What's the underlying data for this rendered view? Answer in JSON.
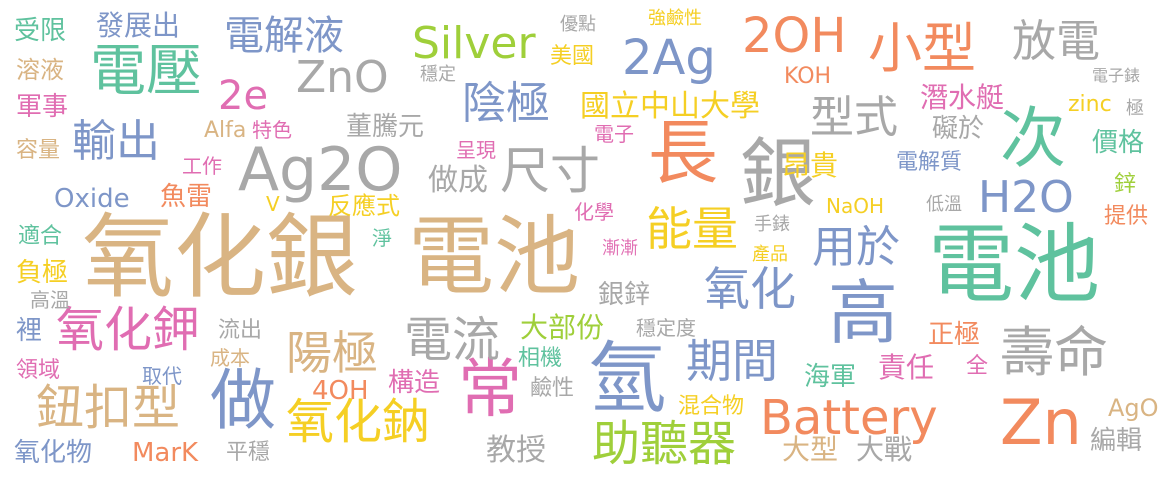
{
  "palette": {
    "tan": "#d9b483",
    "teal": "#5fc29e",
    "orange": "#f28a5e",
    "blue": "#7e96c8",
    "pink": "#e06db2",
    "lime": "#9fcf3a",
    "yellow": "#f5cf24",
    "gray": "#a8a8a8"
  },
  "words": [
    {
      "text": "氧化銀",
      "color": "tan"
    },
    {
      "text": "電池",
      "color": "tan"
    },
    {
      "text": "電池",
      "color": "teal"
    },
    {
      "text": "銀",
      "color": "gray"
    },
    {
      "text": "Zn",
      "color": "orange"
    },
    {
      "text": "氫",
      "color": "blue"
    },
    {
      "text": "高",
      "color": "blue"
    },
    {
      "text": "長",
      "color": "orange"
    },
    {
      "text": "次",
      "color": "teal"
    },
    {
      "text": "做",
      "color": "blue"
    },
    {
      "text": "常",
      "color": "pink"
    },
    {
      "text": "Ag2O",
      "color": "gray"
    },
    {
      "text": "電壓",
      "color": "teal"
    },
    {
      "text": "小型",
      "color": "orange"
    },
    {
      "text": "壽命",
      "color": "gray"
    },
    {
      "text": "Battery",
      "color": "orange"
    },
    {
      "text": "尺寸",
      "color": "gray"
    },
    {
      "text": "氧化鉀",
      "color": "pink"
    },
    {
      "text": "鈕扣型",
      "color": "tan"
    },
    {
      "text": "氧化鈉",
      "color": "yellow"
    },
    {
      "text": "助聽器",
      "color": "lime"
    },
    {
      "text": "電流",
      "color": "gray"
    },
    {
      "text": "陽極",
      "color": "tan"
    },
    {
      "text": "能量",
      "color": "yellow"
    },
    {
      "text": "用於",
      "color": "blue"
    },
    {
      "text": "氧化",
      "color": "blue"
    },
    {
      "text": "期間",
      "color": "blue"
    },
    {
      "text": "輸出",
      "color": "blue"
    },
    {
      "text": "陰極",
      "color": "blue"
    },
    {
      "text": "ZnO",
      "color": "gray"
    },
    {
      "text": "Silver",
      "color": "lime"
    },
    {
      "text": "2Ag",
      "color": "blue"
    },
    {
      "text": "2OH",
      "color": "orange"
    },
    {
      "text": "放電",
      "color": "gray"
    },
    {
      "text": "H2O",
      "color": "blue"
    },
    {
      "text": "型式",
      "color": "gray"
    },
    {
      "text": "電解液",
      "color": "blue"
    },
    {
      "text": "2e",
      "color": "pink"
    },
    {
      "text": "發展出",
      "color": "blue"
    },
    {
      "text": "受限",
      "color": "teal"
    },
    {
      "text": "溶液",
      "color": "tan"
    },
    {
      "text": "軍事",
      "color": "pink"
    },
    {
      "text": "容量",
      "color": "tan"
    },
    {
      "text": "Oxide",
      "color": "blue"
    },
    {
      "text": "適合",
      "color": "teal"
    },
    {
      "text": "負極",
      "color": "yellow"
    },
    {
      "text": "高溫",
      "color": "gray"
    },
    {
      "text": "裡",
      "color": "blue"
    },
    {
      "text": "領域",
      "color": "pink"
    },
    {
      "text": "氧化物",
      "color": "blue"
    },
    {
      "text": "MarK",
      "color": "orange"
    },
    {
      "text": "平穩",
      "color": "gray"
    },
    {
      "text": "取代",
      "color": "blue"
    },
    {
      "text": "成本",
      "color": "tan"
    },
    {
      "text": "流出",
      "color": "gray"
    },
    {
      "text": "4OH",
      "color": "orange"
    },
    {
      "text": "構造",
      "color": "pink"
    },
    {
      "text": "教授",
      "color": "gray"
    },
    {
      "text": "大部份",
      "color": "lime"
    },
    {
      "text": "相機",
      "color": "teal"
    },
    {
      "text": "鹼性",
      "color": "gray"
    },
    {
      "text": "穩定度",
      "color": "gray"
    },
    {
      "text": "混合物",
      "color": "yellow"
    },
    {
      "text": "海軍",
      "color": "teal"
    },
    {
      "text": "責任",
      "color": "pink"
    },
    {
      "text": "正極",
      "color": "orange"
    },
    {
      "text": "全",
      "color": "pink"
    },
    {
      "text": "AgO",
      "color": "tan"
    },
    {
      "text": "編輯",
      "color": "gray"
    },
    {
      "text": "大型",
      "color": "tan"
    },
    {
      "text": "大戰",
      "color": "gray"
    },
    {
      "text": "Alfa",
      "color": "tan"
    },
    {
      "text": "特色",
      "color": "pink"
    },
    {
      "text": "董騰元",
      "color": "gray"
    },
    {
      "text": "工作",
      "color": "pink"
    },
    {
      "text": "魚雷",
      "color": "orange"
    },
    {
      "text": "V",
      "color": "yellow"
    },
    {
      "text": "反應式",
      "color": "yellow"
    },
    {
      "text": "淨",
      "color": "teal"
    },
    {
      "text": "做成",
      "color": "gray"
    },
    {
      "text": "呈現",
      "color": "pink"
    },
    {
      "text": "化學",
      "color": "pink"
    },
    {
      "text": "漸漸",
      "color": "pink"
    },
    {
      "text": "銀鋅",
      "color": "gray"
    },
    {
      "text": "產品",
      "color": "yellow"
    },
    {
      "text": "手錶",
      "color": "gray"
    },
    {
      "text": "優點",
      "color": "gray"
    },
    {
      "text": "強鹼性",
      "color": "yellow"
    },
    {
      "text": "美國",
      "color": "yellow"
    },
    {
      "text": "穩定",
      "color": "gray"
    },
    {
      "text": "國立中山大學",
      "color": "yellow"
    },
    {
      "text": "電子",
      "color": "pink"
    },
    {
      "text": "KOH",
      "color": "orange"
    },
    {
      "text": "潛水艇",
      "color": "pink"
    },
    {
      "text": "礙於",
      "color": "gray"
    },
    {
      "text": "昂貴",
      "color": "yellow"
    },
    {
      "text": "電解質",
      "color": "blue"
    },
    {
      "text": "NaOH",
      "color": "yellow"
    },
    {
      "text": "低溫",
      "color": "gray"
    },
    {
      "text": "zinc",
      "color": "yellow"
    },
    {
      "text": "電子錶",
      "color": "gray"
    },
    {
      "text": "極",
      "color": "gray"
    },
    {
      "text": "價格",
      "color": "teal"
    },
    {
      "text": "鋅",
      "color": "lime"
    },
    {
      "text": "提供",
      "color": "orange"
    }
  ]
}
